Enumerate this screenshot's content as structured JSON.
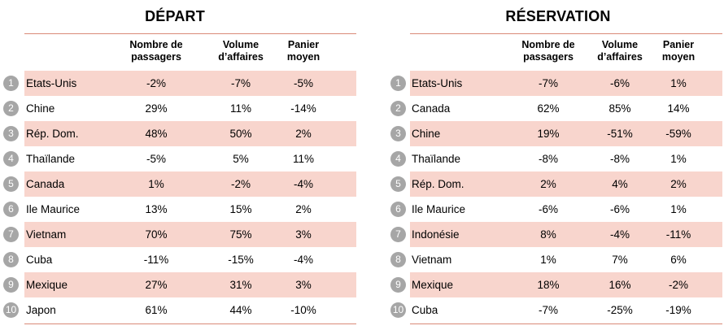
{
  "depart": {
    "title": "DÉPART",
    "headers": {
      "passagers": "Nombre de passagers",
      "volume": "Volume d’affaires",
      "panier": "Panier moyen"
    },
    "rows": [
      {
        "rank": "1",
        "country": "Etats-Unis",
        "passagers": "-2%",
        "volume": "-7%",
        "panier": "-5%"
      },
      {
        "rank": "2",
        "country": "Chine",
        "passagers": "29%",
        "volume": "11%",
        "panier": "-14%"
      },
      {
        "rank": "3",
        "country": "Rép. Dom.",
        "passagers": "48%",
        "volume": "50%",
        "panier": "2%"
      },
      {
        "rank": "4",
        "country": "Thaïlande",
        "passagers": "-5%",
        "volume": "5%",
        "panier": "11%"
      },
      {
        "rank": "5",
        "country": "Canada",
        "passagers": "1%",
        "volume": "-2%",
        "panier": "-4%"
      },
      {
        "rank": "6",
        "country": "Ile Maurice",
        "passagers": "13%",
        "volume": "15%",
        "panier": "2%"
      },
      {
        "rank": "7",
        "country": "Vietnam",
        "passagers": "70%",
        "volume": "75%",
        "panier": "3%"
      },
      {
        "rank": "8",
        "country": "Cuba",
        "passagers": "-11%",
        "volume": "-15%",
        "panier": "-4%"
      },
      {
        "rank": "9",
        "country": "Mexique",
        "passagers": "27%",
        "volume": "31%",
        "panier": "3%"
      },
      {
        "rank": "10",
        "country": "Japon",
        "passagers": "61%",
        "volume": "44%",
        "panier": "-10%"
      }
    ]
  },
  "reservation": {
    "title": "RÉSERVATION",
    "headers": {
      "passagers": "Nombre de passagers",
      "volume": "Volume d’affaires",
      "panier": "Panier moyen"
    },
    "rows": [
      {
        "rank": "1",
        "country": "Etats-Unis",
        "passagers": "-7%",
        "volume": "-6%",
        "panier": "1%"
      },
      {
        "rank": "2",
        "country": "Canada",
        "passagers": "62%",
        "volume": "85%",
        "panier": "14%"
      },
      {
        "rank": "3",
        "country": "Chine",
        "passagers": "19%",
        "volume": "-51%",
        "panier": "-59%"
      },
      {
        "rank": "4",
        "country": "Thaïlande",
        "passagers": "-8%",
        "volume": "-8%",
        "panier": "1%"
      },
      {
        "rank": "5",
        "country": "Rép. Dom.",
        "passagers": "2%",
        "volume": "4%",
        "panier": "2%"
      },
      {
        "rank": "6",
        "country": "Ile Maurice",
        "passagers": "-6%",
        "volume": "-6%",
        "panier": "1%"
      },
      {
        "rank": "7",
        "country": "Indonésie",
        "passagers": "8%",
        "volume": "-4%",
        "panier": "-11%"
      },
      {
        "rank": "8",
        "country": "Vietnam",
        "passagers": "1%",
        "volume": "7%",
        "panier": "6%"
      },
      {
        "rank": "9",
        "country": "Mexique",
        "passagers": "18%",
        "volume": "16%",
        "panier": "-2%"
      },
      {
        "rank": "10",
        "country": "Cuba",
        "passagers": "-7%",
        "volume": "-25%",
        "panier": "-19%"
      }
    ]
  },
  "colors": {
    "row_shade": "#f8d5cd",
    "rule": "#d98a78",
    "badge": "#a6a6a6"
  }
}
